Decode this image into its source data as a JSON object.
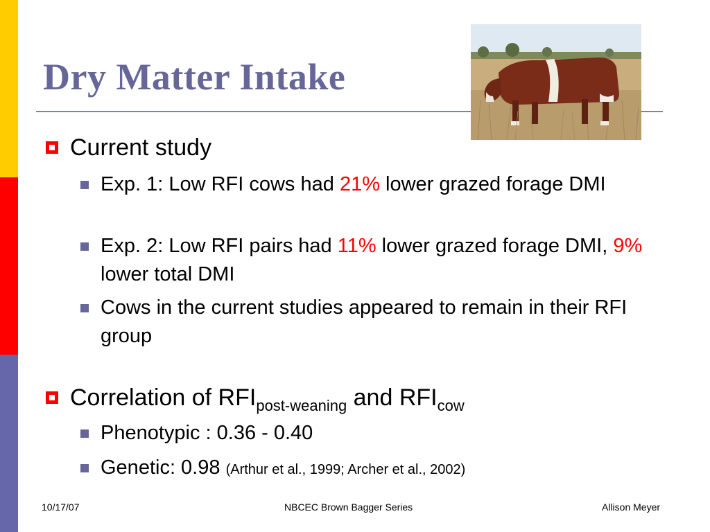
{
  "slide": {
    "title": "Dry Matter Intake",
    "photo_icon": "cow-grazing-photo",
    "colors": {
      "title": "#666699",
      "highlight": "#ff0000",
      "bullet1": "#ff0000",
      "bullet2": "#666699",
      "sidebar": [
        "#ffcc00",
        "#ff0000",
        "#6666aa"
      ]
    },
    "section1": {
      "heading": "Current study",
      "items": [
        {
          "pre": "Exp. 1: Low RFI cows had ",
          "hl": "21%",
          "post": " lower grazed forage DMI"
        },
        {
          "pre": "Exp. 2: Low RFI pairs had ",
          "hl": "11%",
          "mid": " lower grazed forage DMI, ",
          "hl2": "9%",
          "post": " lower total DMI"
        },
        {
          "text": "Cows in the current studies appeared to remain in their RFI group"
        }
      ]
    },
    "section2": {
      "heading_pre": "Correlation of RFI",
      "sub1": "post-weaning",
      "heading_mid": " and RFI",
      "sub2": "cow",
      "items": [
        {
          "text": "Phenotypic : 0.36 - 0.40"
        },
        {
          "text": "Genetic: 0.98 ",
          "cite": "(Arthur et al., 1999; Archer et al., 2002)"
        }
      ]
    },
    "footer": {
      "date": "10/17/07",
      "center": "NBCEC Brown Bagger Series",
      "author": "Allison Meyer"
    }
  }
}
